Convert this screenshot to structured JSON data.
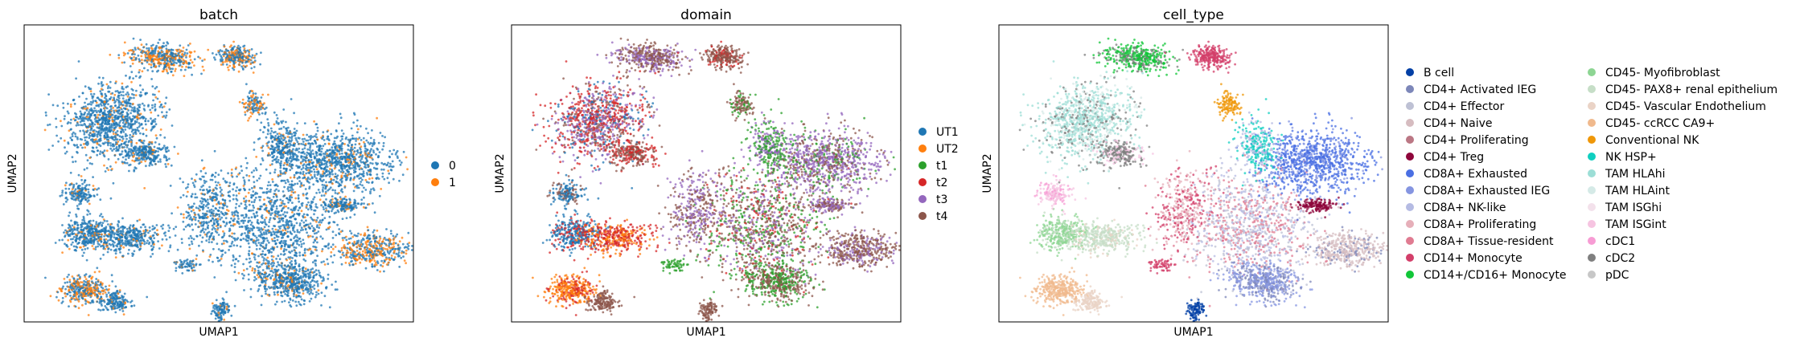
{
  "panels": [
    {
      "title": "batch",
      "xlabel": "UMAP1",
      "ylabel": "UMAP2",
      "legend": [
        {
          "label": "0",
          "color": "#1f77b4"
        },
        {
          "label": "1",
          "color": "#ff7f0e"
        }
      ]
    },
    {
      "title": "domain",
      "xlabel": "UMAP1",
      "ylabel": "UMAP2",
      "legend": [
        {
          "label": "UT1",
          "color": "#1f77b4"
        },
        {
          "label": "UT2",
          "color": "#ff7f0e"
        },
        {
          "label": "t1",
          "color": "#2ca02c"
        },
        {
          "label": "t2",
          "color": "#d62728"
        },
        {
          "label": "t3",
          "color": "#9467bd"
        },
        {
          "label": "t4",
          "color": "#8c564b"
        }
      ]
    },
    {
      "title": "cell_type",
      "xlabel": "UMAP1",
      "ylabel": "UMAP2",
      "legend": [
        {
          "label": "B cell",
          "color": "#023fa5"
        },
        {
          "label": "CD4+ Activated IEG",
          "color": "#7d87b9"
        },
        {
          "label": "CD4+ Effector",
          "color": "#bec1d4"
        },
        {
          "label": "CD4+ Naive",
          "color": "#d6bcc0"
        },
        {
          "label": "CD4+ Proliferating",
          "color": "#bb7784"
        },
        {
          "label": "CD4+ Treg",
          "color": "#8e063b"
        },
        {
          "label": "CD8A+ Exhausted",
          "color": "#4a6fe3"
        },
        {
          "label": "CD8A+ Exhausted IEG",
          "color": "#8595e1"
        },
        {
          "label": "CD8A+ NK-like",
          "color": "#b5bbe3"
        },
        {
          "label": "CD8A+ Proliferating",
          "color": "#e6afb9"
        },
        {
          "label": "CD8A+ Tissue-resident",
          "color": "#e07b91"
        },
        {
          "label": "CD14+ Monocyte",
          "color": "#d33f6a"
        },
        {
          "label": "CD14+/CD16+ Monocyte",
          "color": "#11c638"
        },
        {
          "label": "CD45- Myofibroblast",
          "color": "#8dd593"
        },
        {
          "label": "CD45- PAX8+ renal epithelium",
          "color": "#c6dec7"
        },
        {
          "label": "CD45- Vascular Endothelium",
          "color": "#ead3c6"
        },
        {
          "label": "CD45- ccRCC CA9+",
          "color": "#f0b98d"
        },
        {
          "label": "Conventional NK",
          "color": "#ef9708"
        },
        {
          "label": "NK HSP+",
          "color": "#0fcfc0"
        },
        {
          "label": "TAM HLAhi",
          "color": "#9cded6"
        },
        {
          "label": "TAM HLAint",
          "color": "#d5eae7"
        },
        {
          "label": "TAM ISGhi",
          "color": "#f3e1eb"
        },
        {
          "label": "TAM ISGint",
          "color": "#f6c4e1"
        },
        {
          "label": "cDC1",
          "color": "#f79cd4"
        },
        {
          "label": "cDC2",
          "color": "#7f7f7f"
        },
        {
          "label": "pDC",
          "color": "#c7c7c7"
        }
      ]
    }
  ],
  "chart_data": [
    {
      "type": "scatter",
      "title": "batch",
      "xlabel": "UMAP1",
      "ylabel": "UMAP2",
      "ticks": "none",
      "series": [
        {
          "name": "0"
        },
        {
          "name": "1"
        }
      ]
    },
    {
      "type": "scatter",
      "title": "domain",
      "xlabel": "UMAP1",
      "ylabel": "UMAP2",
      "ticks": "none",
      "series": [
        {
          "name": "UT1"
        },
        {
          "name": "UT2"
        },
        {
          "name": "t1"
        },
        {
          "name": "t2"
        },
        {
          "name": "t3"
        },
        {
          "name": "t4"
        }
      ]
    },
    {
      "type": "scatter",
      "title": "cell_type",
      "xlabel": "UMAP1",
      "ylabel": "UMAP2",
      "ticks": "none",
      "series": [
        {
          "name": "B cell"
        },
        {
          "name": "CD4+ Activated IEG"
        },
        {
          "name": "CD4+ Effector"
        },
        {
          "name": "CD4+ Naive"
        },
        {
          "name": "CD4+ Proliferating"
        },
        {
          "name": "CD4+ Treg"
        },
        {
          "name": "CD8A+ Exhausted"
        },
        {
          "name": "CD8A+ Exhausted IEG"
        },
        {
          "name": "CD8A+ NK-like"
        },
        {
          "name": "CD8A+ Proliferating"
        },
        {
          "name": "CD8A+ Tissue-resident"
        },
        {
          "name": "CD14+ Monocyte"
        },
        {
          "name": "CD14+/CD16+ Monocyte"
        },
        {
          "name": "CD45- Myofibroblast"
        },
        {
          "name": "CD45- PAX8+ renal epithelium"
        },
        {
          "name": "CD45- Vascular Endothelium"
        },
        {
          "name": "CD45- ccRCC CA9+"
        },
        {
          "name": "Conventional NK"
        },
        {
          "name": "NK HSP+"
        },
        {
          "name": "TAM HLAhi"
        },
        {
          "name": "TAM HLAint"
        },
        {
          "name": "TAM ISGhi"
        },
        {
          "name": "TAM ISGint"
        },
        {
          "name": "cDC1"
        },
        {
          "name": "cDC2"
        },
        {
          "name": "pDC"
        }
      ]
    }
  ]
}
